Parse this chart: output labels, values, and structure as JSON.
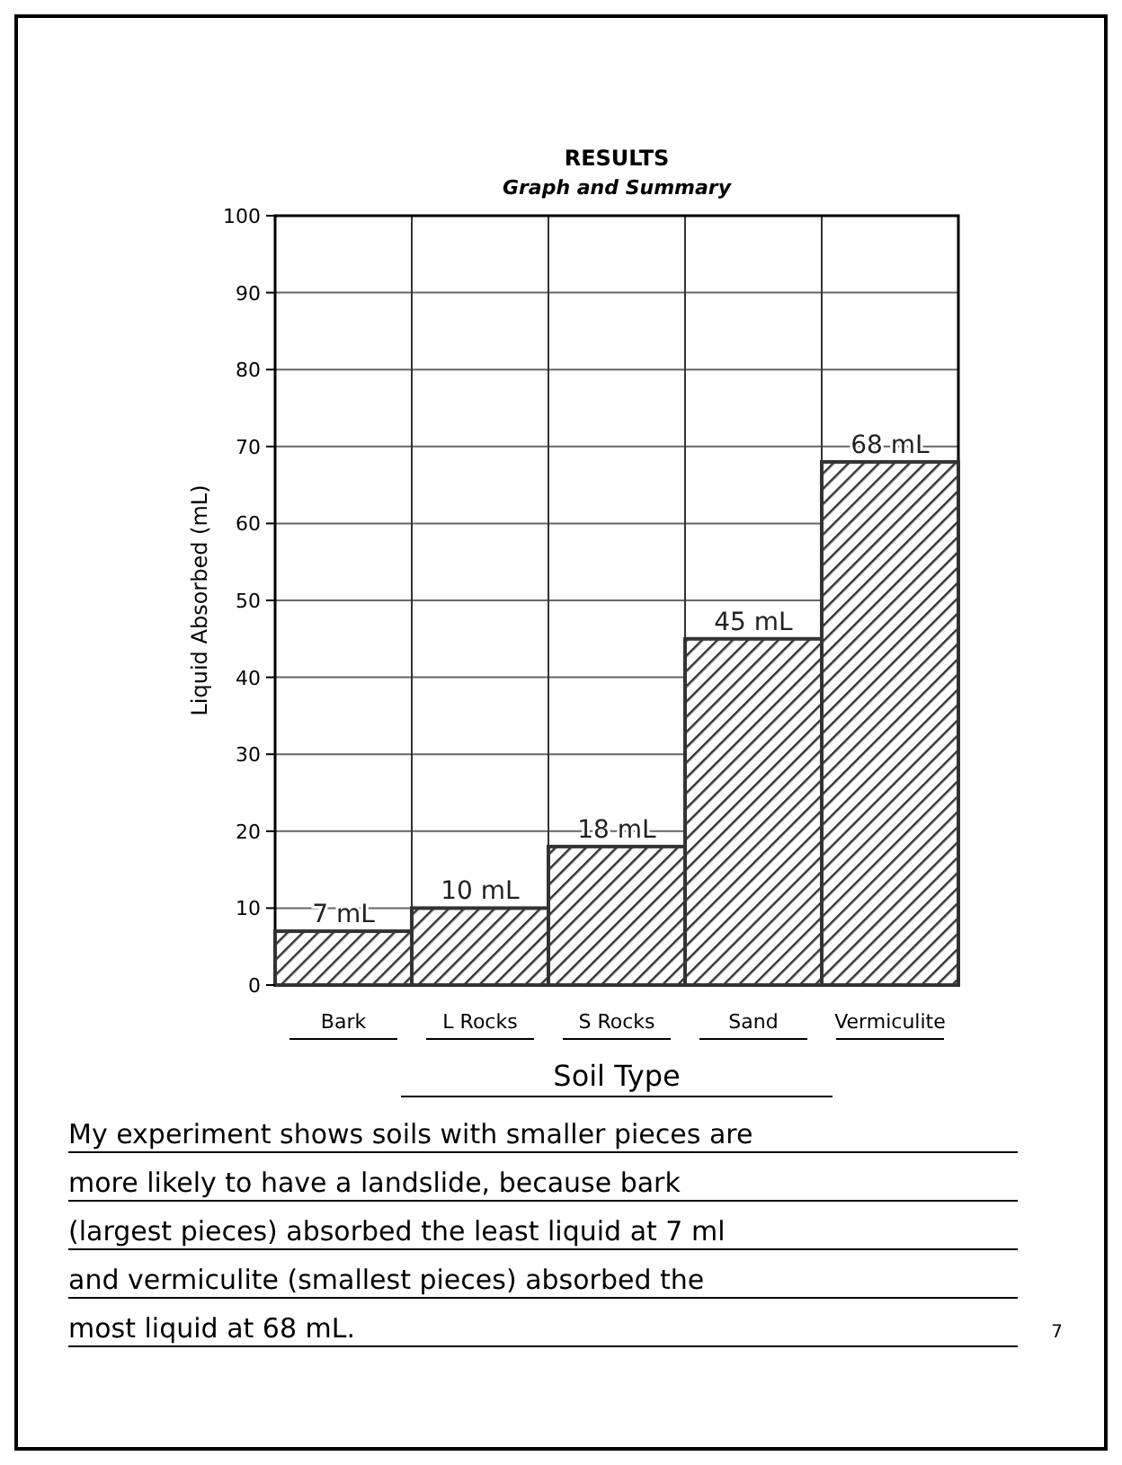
{
  "chart_data": {
    "type": "bar",
    "title": "RESULTS",
    "subtitle": "Graph and Summary",
    "xlabel": "Soil Type",
    "ylabel": "Liquid Absorbed (mL)",
    "categories": [
      "Bark",
      "L Rocks",
      "S Rocks",
      "Sand",
      "Vermiculite"
    ],
    "values": [
      7,
      10,
      18,
      45,
      68
    ],
    "color": "#333333",
    "value_labels": [
      "7 mL",
      "10 mL",
      "18 mL",
      "45 mL",
      "68 mL"
    ],
    "ylim": [
      0,
      100
    ],
    "yticks": [
      0,
      10,
      20,
      30,
      40,
      50,
      60,
      70,
      80,
      90,
      100
    ],
    "grid": true,
    "annotations": [
      "My experiment shows soils with smaller pieces are more likely to have a landslide, because bark (largest pieces) absorbed the least liquid at 7 ml and vermiculite (smallest pieces) absorbed the most liquid at 68 mL.",
      "7"
    ]
  }
}
